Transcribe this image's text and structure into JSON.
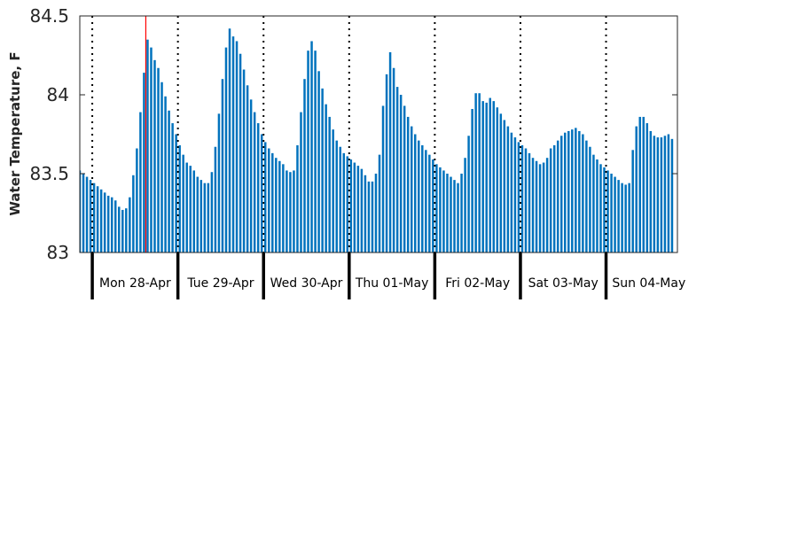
{
  "chart_data": {
    "type": "bar",
    "title": "",
    "xlabel": "",
    "ylabel": "Water Temperature, F",
    "ylim": [
      83,
      84.5
    ],
    "yticks": [
      "83",
      "83.5",
      "84",
      "84.5"
    ],
    "days": [
      "Mon 28-Apr",
      "Tue 29-Apr",
      "Wed 30-Apr",
      "Thu 01-May",
      "Fri 02-May",
      "Sat 03-May",
      "Sun 04-May"
    ],
    "x_unit": "hours since 00:00 on 27-Apr",
    "xlim": [
      20.5,
      188
    ],
    "current_time_marker": 39,
    "bar_color": "#0072BD",
    "marker_color": "#ff0000",
    "series": [
      {
        "values": [
          83.52,
          83.5,
          83.48,
          83.46,
          83.44,
          83.42,
          83.4,
          83.38,
          83.36,
          83.35,
          83.33,
          83.29,
          83.27,
          83.28,
          83.35,
          83.49,
          83.66,
          83.89,
          84.14,
          84.35,
          84.3,
          84.22,
          84.17,
          84.08,
          83.99,
          83.9,
          83.82,
          83.75,
          83.68,
          83.62,
          83.57,
          83.55,
          83.52,
          83.48,
          83.46,
          83.44,
          83.44,
          83.51,
          83.67,
          83.88,
          84.1,
          84.3,
          84.42,
          84.37,
          84.34,
          84.26,
          84.16,
          84.06,
          83.97,
          83.89,
          83.82,
          83.75,
          83.7,
          83.66,
          83.63,
          83.6,
          83.58,
          83.56,
          83.52,
          83.51,
          83.52,
          83.68,
          83.89,
          84.1,
          84.28,
          84.34,
          84.28,
          84.15,
          84.04,
          83.94,
          83.86,
          83.78,
          83.71,
          83.67,
          83.63,
          83.61,
          83.59,
          83.57,
          83.55,
          83.53,
          83.49,
          83.45,
          83.45,
          83.5,
          83.62,
          83.93,
          84.13,
          84.27,
          84.17,
          84.05,
          84.0,
          83.93,
          83.86,
          83.8,
          83.75,
          83.71,
          83.68,
          83.65,
          83.62,
          83.59,
          83.56,
          83.54,
          83.52,
          83.5,
          83.48,
          83.46,
          83.44,
          83.5,
          83.6,
          83.74,
          83.91,
          84.01,
          84.01,
          83.96,
          83.95,
          83.98,
          83.96,
          83.92,
          83.88,
          83.84,
          83.8,
          83.76,
          83.73,
          83.7,
          83.68,
          83.66,
          83.63,
          83.6,
          83.58,
          83.56,
          83.57,
          83.6,
          83.66,
          83.68,
          83.71,
          83.74,
          83.76,
          83.77,
          83.78,
          83.79,
          83.77,
          83.75,
          83.71,
          83.67,
          83.62,
          83.59,
          83.56,
          83.54,
          83.52,
          83.5,
          83.48,
          83.46,
          83.44,
          83.43,
          83.44,
          83.65,
          83.8,
          83.86,
          83.86,
          83.82,
          83.77,
          83.74,
          83.73,
          83.73,
          83.74,
          83.75,
          83.72
        ]
      }
    ]
  }
}
